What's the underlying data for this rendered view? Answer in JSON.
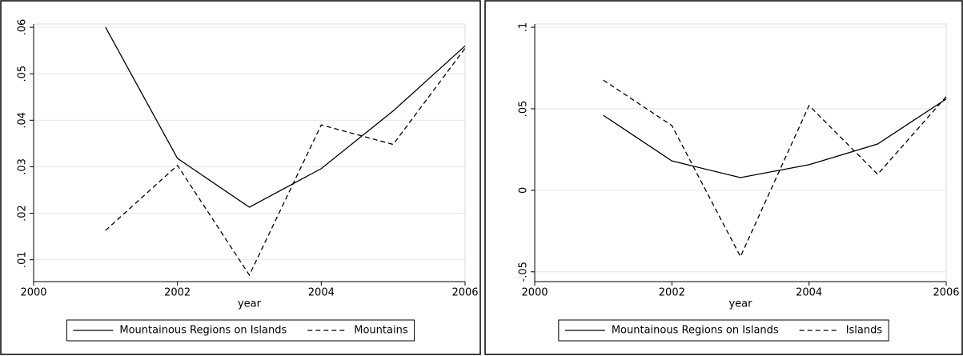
{
  "chart_data": [
    {
      "type": "line",
      "xlabel": "year",
      "x": [
        2001,
        2002,
        2003,
        2004,
        2005,
        2006
      ],
      "xlim": [
        2000,
        2006
      ],
      "xticks": [
        2000,
        2002,
        2004,
        2006
      ],
      "ylim": [
        0.0053,
        0.0607
      ],
      "yticks": [
        {
          "value": 0.01,
          "label": ".01"
        },
        {
          "value": 0.02,
          "label": ".02"
        },
        {
          "value": 0.03,
          "label": ".03"
        },
        {
          "value": 0.04,
          "label": ".04"
        },
        {
          "value": 0.05,
          "label": ".05"
        },
        {
          "value": 0.06,
          "label": ".06"
        }
      ],
      "grid": true,
      "legend": "bottom",
      "series": [
        {
          "name": "Mountainous Regions on Islands",
          "color": "#000000",
          "linestyle": "solid",
          "values": [
            0.06,
            0.0318,
            0.0213,
            0.0296,
            0.042,
            0.056
          ]
        },
        {
          "name": "Mountains",
          "color": "#000000",
          "linestyle": "dashed",
          "values": [
            0.0163,
            0.0303,
            0.0067,
            0.039,
            0.0348,
            0.0555
          ]
        }
      ]
    },
    {
      "type": "line",
      "xlabel": "year",
      "x": [
        2001,
        2002,
        2003,
        2004,
        2005,
        2006
      ],
      "xlim": [
        2000,
        2006
      ],
      "xticks": [
        2000,
        2002,
        2004,
        2006
      ],
      "ylim": [
        -0.056,
        0.102
      ],
      "yticks": [
        {
          "value": -0.05,
          "label": "-.05"
        },
        0,
        {
          "value": 0.05,
          "label": ".05"
        },
        {
          "value": 0.1,
          "label": ".1"
        }
      ],
      "grid": true,
      "legend": "bottom",
      "series": [
        {
          "name": "Mountainous Regions on Islands",
          "color": "#000000",
          "linestyle": "solid",
          "values": [
            0.046,
            0.018,
            0.0078,
            0.0157,
            0.0284,
            0.056
          ]
        },
        {
          "name": "Islands",
          "color": "#000000",
          "linestyle": "dashed",
          "values": [
            0.0676,
            0.0397,
            -0.0407,
            0.052,
            0.0098,
            0.0574
          ]
        }
      ]
    }
  ]
}
